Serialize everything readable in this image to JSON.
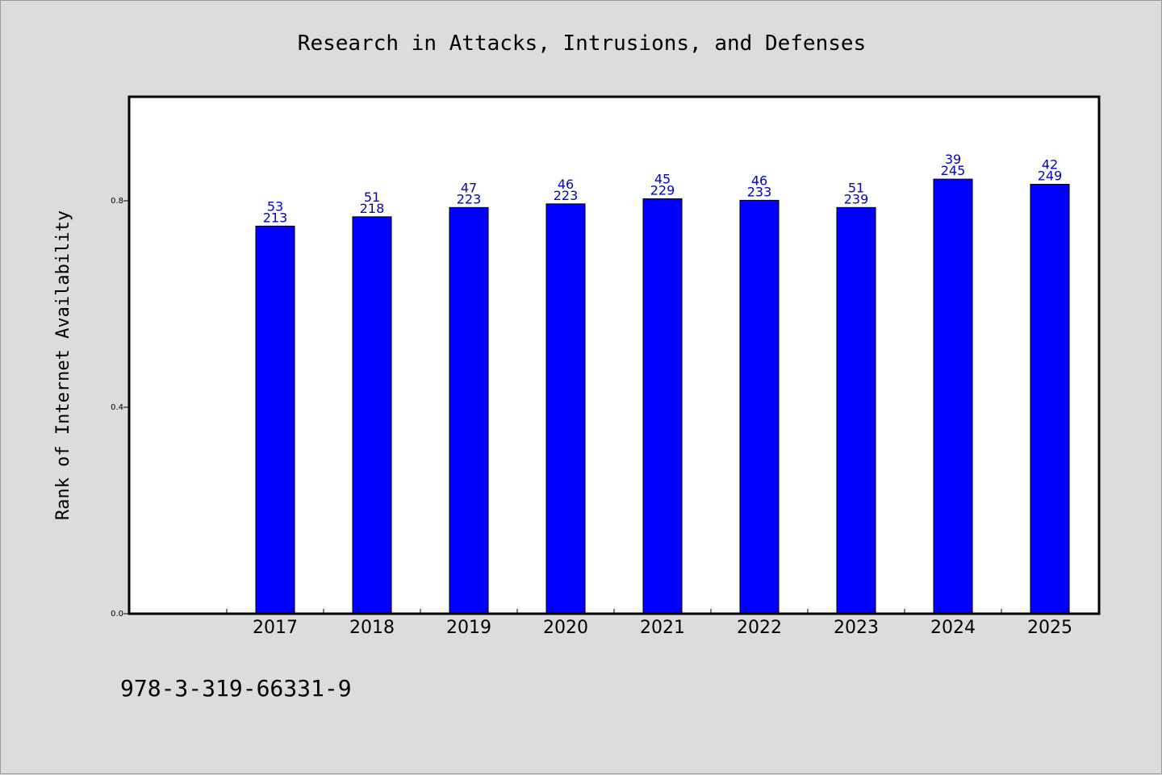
{
  "colors": {
    "background": "#dcdcdc",
    "plot_background": "#ffffff",
    "bar": "#0000ff",
    "bar_label": "#0000cc",
    "axis": "#000000"
  },
  "footer": "978-3-319-66331-9",
  "chart_data": {
    "type": "bar",
    "title": "Research in Attacks, Intrusions, and Defenses",
    "xlabel": "",
    "ylabel": "Rank of Internet Availability",
    "ylim": [
      0,
      1.0
    ],
    "yticks": [
      0.0,
      0.4,
      0.8
    ],
    "ytick_labels": [
      "0.0",
      "0.4",
      "0.8"
    ],
    "grid": false,
    "categories": [
      "2017",
      "2018",
      "2019",
      "2020",
      "2021",
      "2022",
      "2023",
      "2024",
      "2025"
    ],
    "values": [
      0.751,
      0.769,
      0.787,
      0.794,
      0.804,
      0.801,
      0.787,
      0.842,
      0.832
    ],
    "label_top": [
      "53",
      "51",
      "47",
      "46",
      "45",
      "46",
      "51",
      "39",
      "42"
    ],
    "label_bottom": [
      "213",
      "218",
      "223",
      "223",
      "229",
      "233",
      "239",
      "245",
      "249"
    ]
  }
}
